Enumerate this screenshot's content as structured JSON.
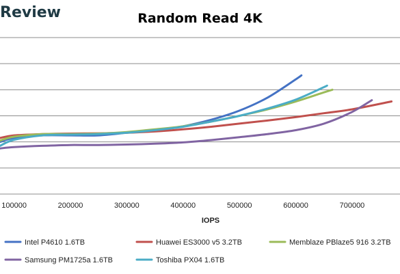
{
  "header": {
    "brand": "Review"
  },
  "chart_data": {
    "type": "line",
    "title": "Random Read 4K",
    "xlabel": "IOPS",
    "ylabel": "",
    "xlim": [
      75000,
      785000
    ],
    "ylim": [
      0,
      6
    ],
    "grid": true,
    "x_ticks": [
      100000,
      200000,
      300000,
      400000,
      500000,
      600000,
      700000
    ],
    "x_tick_labels": [
      "100000",
      "200000",
      "300000",
      "400000",
      "500000",
      "600000",
      "700000"
    ],
    "y_gridlines": [
      1,
      2,
      3,
      4,
      5,
      6
    ],
    "legend_position": "bottom",
    "series": [
      {
        "name": "Intel P4610 1.6TB",
        "color": "#4472c4",
        "points": [
          [
            75000,
            2.0
          ],
          [
            100000,
            2.15
          ],
          [
            150000,
            2.25
          ],
          [
            200000,
            2.25
          ],
          [
            250000,
            2.25
          ],
          [
            300000,
            2.35
          ],
          [
            350000,
            2.45
          ],
          [
            400000,
            2.6
          ],
          [
            450000,
            2.85
          ],
          [
            500000,
            3.2
          ],
          [
            550000,
            3.7
          ],
          [
            600000,
            4.4
          ],
          [
            610000,
            4.55
          ]
        ]
      },
      {
        "name": "Huawei ES3000 v5 3.2TB",
        "color": "#c0504d",
        "points": [
          [
            75000,
            2.15
          ],
          [
            100000,
            2.25
          ],
          [
            150000,
            2.3
          ],
          [
            200000,
            2.32
          ],
          [
            250000,
            2.33
          ],
          [
            300000,
            2.35
          ],
          [
            350000,
            2.4
          ],
          [
            400000,
            2.48
          ],
          [
            450000,
            2.58
          ],
          [
            500000,
            2.7
          ],
          [
            550000,
            2.82
          ],
          [
            600000,
            2.95
          ],
          [
            650000,
            3.1
          ],
          [
            700000,
            3.25
          ],
          [
            770000,
            3.55
          ]
        ]
      },
      {
        "name": "Memblaze PBlaze5 916 3.2TB",
        "color": "#9bbb59",
        "points": [
          [
            75000,
            2.05
          ],
          [
            100000,
            2.2
          ],
          [
            150000,
            2.3
          ],
          [
            200000,
            2.3
          ],
          [
            250000,
            2.32
          ],
          [
            300000,
            2.38
          ],
          [
            350000,
            2.48
          ],
          [
            400000,
            2.6
          ],
          [
            450000,
            2.78
          ],
          [
            500000,
            3.0
          ],
          [
            550000,
            3.25
          ],
          [
            600000,
            3.55
          ],
          [
            650000,
            3.9
          ],
          [
            665000,
            4.0
          ]
        ]
      },
      {
        "name": "Samsung PM1725a 1.6TB",
        "color": "#8064a2",
        "points": [
          [
            75000,
            1.75
          ],
          [
            100000,
            1.8
          ],
          [
            150000,
            1.85
          ],
          [
            200000,
            1.88
          ],
          [
            250000,
            1.88
          ],
          [
            300000,
            1.9
          ],
          [
            350000,
            1.93
          ],
          [
            400000,
            1.98
          ],
          [
            450000,
            2.07
          ],
          [
            500000,
            2.18
          ],
          [
            550000,
            2.3
          ],
          [
            600000,
            2.45
          ],
          [
            650000,
            2.7
          ],
          [
            700000,
            3.15
          ],
          [
            735000,
            3.6
          ]
        ]
      },
      {
        "name": "Toshiba PX04 1.6TB",
        "color": "#4bacc6",
        "points": [
          [
            75000,
            1.85
          ],
          [
            100000,
            2.08
          ],
          [
            150000,
            2.25
          ],
          [
            200000,
            2.28
          ],
          [
            250000,
            2.3
          ],
          [
            300000,
            2.35
          ],
          [
            350000,
            2.45
          ],
          [
            400000,
            2.58
          ],
          [
            450000,
            2.78
          ],
          [
            500000,
            3.0
          ],
          [
            550000,
            3.28
          ],
          [
            600000,
            3.62
          ],
          [
            650000,
            4.1
          ],
          [
            655000,
            4.15
          ]
        ]
      }
    ]
  }
}
